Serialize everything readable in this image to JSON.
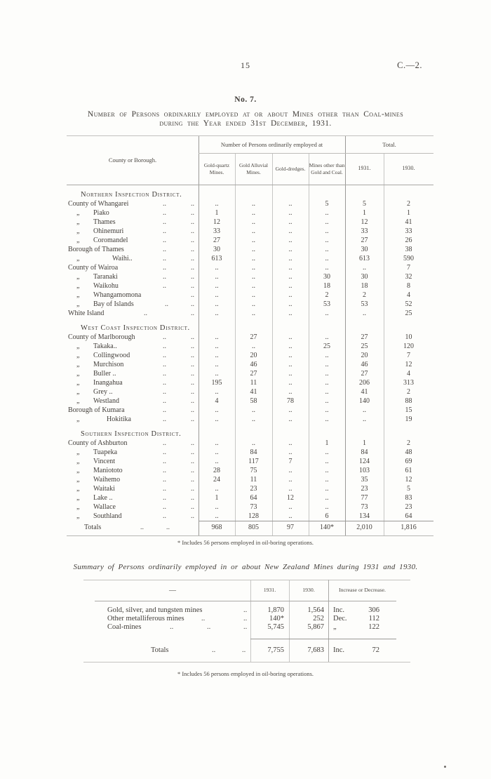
{
  "page": {
    "page_number": "15",
    "doc_ref": "C.—2.",
    "table_number": "No. 7.",
    "title_line1": "Number of Persons ordinarily employed at or about Mines other than Coal-mines",
    "title_line2": "during the Year ended 31st December, 1931.",
    "footnote": "* Includes 56 persons employed in oil-boring operations."
  },
  "glyphs": {
    "ditto": "„",
    "leader": ".."
  },
  "main_table": {
    "stub_header": "County or Borough.",
    "col_group_header": "Number of Persons ordinarily employed at",
    "total_header": "Total.",
    "columns": [
      "Gold-quartz Mines.",
      "Gold Alluvial Mines.",
      "Gold-dredges.",
      "Mines other than Gold and Coal.",
      "1931.",
      "1930."
    ],
    "rows": [
      {
        "type": "section",
        "label": "Northern Inspection District."
      },
      {
        "type": "data",
        "ditto": false,
        "x": 2,
        "label": "County of Whangarei",
        "leaders": [
          137,
          177
        ],
        "cells": [
          "..",
          "..",
          "..",
          "5",
          "5",
          "2"
        ]
      },
      {
        "type": "data",
        "ditto": true,
        "x": 38,
        "label": "Piako",
        "leaders": [
          137,
          177
        ],
        "cells": [
          "1",
          "..",
          "..",
          "..",
          "1",
          "1"
        ]
      },
      {
        "type": "data",
        "ditto": true,
        "x": 38,
        "label": "Thames",
        "leaders": [
          137,
          177
        ],
        "cells": [
          "12",
          "..",
          "..",
          "..",
          "12",
          "41"
        ]
      },
      {
        "type": "data",
        "ditto": true,
        "x": 38,
        "label": "Ohinemuri",
        "leaders": [
          137,
          177
        ],
        "cells": [
          "33",
          "..",
          "..",
          "..",
          "33",
          "33"
        ]
      },
      {
        "type": "data",
        "ditto": true,
        "x": 38,
        "label": "Coromandel",
        "leaders": [
          137,
          177
        ],
        "cells": [
          "27",
          "..",
          "..",
          "..",
          "27",
          "26"
        ]
      },
      {
        "type": "data",
        "ditto": false,
        "x": 2,
        "label": "Borough of Thames",
        "leaders": [
          137,
          177
        ],
        "cells": [
          "30",
          "..",
          "..",
          "..",
          "30",
          "38"
        ]
      },
      {
        "type": "data",
        "ditto": true,
        "x": 65,
        "label": "Waihi..",
        "leaders": [
          137,
          177
        ],
        "cells": [
          "613",
          "..",
          "..",
          "..",
          "613",
          "590"
        ]
      },
      {
        "type": "data",
        "ditto": false,
        "x": 2,
        "label": "County of Wairoa",
        "leaders": [
          137,
          177
        ],
        "cells": [
          "..",
          "..",
          "..",
          "..",
          "..",
          "7"
        ]
      },
      {
        "type": "data",
        "ditto": true,
        "x": 38,
        "label": "Taranaki",
        "leaders": [
          137,
          177
        ],
        "cells": [
          "..",
          "..",
          "..",
          "30",
          "30",
          "32"
        ]
      },
      {
        "type": "data",
        "ditto": true,
        "x": 38,
        "label": "Waikohu",
        "leaders": [
          137,
          177
        ],
        "cells": [
          "..",
          "..",
          "..",
          "18",
          "18",
          "8"
        ]
      },
      {
        "type": "data",
        "ditto": true,
        "x": 38,
        "label": "Whangamomona",
        "leaders": [
          177
        ],
        "cells": [
          "..",
          "..",
          "..",
          "2",
          "2",
          "4"
        ]
      },
      {
        "type": "data",
        "ditto": true,
        "x": 38,
        "label": "Bay of Islands",
        "leaders": [
          140,
          177
        ],
        "cells": [
          "..",
          "..",
          "..",
          "53",
          "53",
          "52"
        ]
      },
      {
        "type": "data",
        "ditto": false,
        "x": 2,
        "label": "White Island",
        "leaders": [
          110,
          177
        ],
        "cells": [
          "..",
          "..",
          "..",
          "..",
          "..",
          "25"
        ]
      },
      {
        "type": "section",
        "gap": true,
        "label": "West Coast Inspection District."
      },
      {
        "type": "data",
        "ditto": false,
        "x": 2,
        "label": "County of Marlborough",
        "leaders": [
          137,
          177
        ],
        "cells": [
          "..",
          "27",
          "..",
          "..",
          "27",
          "10"
        ]
      },
      {
        "type": "data",
        "ditto": true,
        "x": 38,
        "label": "Takaka..",
        "leaders": [
          137,
          177
        ],
        "cells": [
          "..",
          "..",
          "..",
          "25",
          "25",
          "120"
        ]
      },
      {
        "type": "data",
        "ditto": true,
        "x": 38,
        "label": "Collingwood",
        "leaders": [
          137,
          177
        ],
        "cells": [
          "..",
          "20",
          "..",
          "..",
          "20",
          "7"
        ]
      },
      {
        "type": "data",
        "ditto": true,
        "x": 38,
        "label": "Murchison",
        "leaders": [
          137,
          177
        ],
        "cells": [
          "..",
          "46",
          "..",
          "..",
          "46",
          "12"
        ]
      },
      {
        "type": "data",
        "ditto": true,
        "x": 38,
        "label": "Buller ..",
        "leaders": [
          137,
          177
        ],
        "cells": [
          "..",
          "27",
          "..",
          "..",
          "27",
          "4"
        ]
      },
      {
        "type": "data",
        "ditto": true,
        "x": 38,
        "label": "Inangahua",
        "leaders": [
          137,
          177
        ],
        "cells": [
          "195",
          "11",
          "..",
          "..",
          "206",
          "313"
        ]
      },
      {
        "type": "data",
        "ditto": true,
        "x": 38,
        "label": "Grey  ..",
        "leaders": [
          137,
          177
        ],
        "cells": [
          "..",
          "41",
          "..",
          "..",
          "41",
          "2"
        ]
      },
      {
        "type": "data",
        "ditto": true,
        "x": 38,
        "label": "Westland",
        "leaders": [
          137,
          177
        ],
        "cells": [
          "4",
          "58",
          "78",
          "..",
          "140",
          "88"
        ]
      },
      {
        "type": "data",
        "ditto": false,
        "x": 2,
        "label": "Borough of Kumara",
        "leaders": [
          137,
          177
        ],
        "cells": [
          "..",
          "..",
          "..",
          "..",
          "..",
          "15"
        ]
      },
      {
        "type": "data",
        "ditto": true,
        "x": 57,
        "label": "Hokitika",
        "leaders": [
          137,
          177
        ],
        "cells": [
          "..",
          "..",
          "..",
          "..",
          "..",
          "19"
        ]
      },
      {
        "type": "section",
        "gap": true,
        "label": "Southern Inspection District."
      },
      {
        "type": "data",
        "ditto": false,
        "x": 2,
        "label": "County of Ashburton",
        "leaders": [
          137,
          177
        ],
        "cells": [
          "..",
          "..",
          "..",
          "1",
          "1",
          "2"
        ]
      },
      {
        "type": "data",
        "ditto": true,
        "x": 38,
        "label": "Tuapeka",
        "leaders": [
          137,
          177
        ],
        "cells": [
          "..",
          "84",
          "..",
          "..",
          "84",
          "48"
        ]
      },
      {
        "type": "data",
        "ditto": true,
        "x": 38,
        "label": "Vincent",
        "leaders": [
          137,
          177
        ],
        "cells": [
          "..",
          "117",
          "7",
          "..",
          "124",
          "69"
        ]
      },
      {
        "type": "data",
        "ditto": true,
        "x": 38,
        "label": "Maniototo",
        "leaders": [
          137,
          177
        ],
        "cells": [
          "28",
          "75",
          "..",
          "..",
          "103",
          "61"
        ]
      },
      {
        "type": "data",
        "ditto": true,
        "x": 38,
        "label": "Waihemo",
        "leaders": [
          137,
          177
        ],
        "cells": [
          "24",
          "11",
          "..",
          "..",
          "35",
          "12"
        ]
      },
      {
        "type": "data",
        "ditto": true,
        "x": 38,
        "label": "Waitaki",
        "leaders": [
          137,
          177
        ],
        "cells": [
          "..",
          "23",
          "..",
          "..",
          "23",
          "5"
        ]
      },
      {
        "type": "data",
        "ditto": true,
        "x": 38,
        "label": "Lake  ..",
        "leaders": [
          137,
          177
        ],
        "cells": [
          "1",
          "64",
          "12",
          "..",
          "77",
          "83"
        ]
      },
      {
        "type": "data",
        "ditto": true,
        "x": 38,
        "label": "Wallace",
        "leaders": [
          137,
          177
        ],
        "cells": [
          "..",
          "73",
          "..",
          "..",
          "73",
          "23"
        ]
      },
      {
        "type": "data",
        "ditto": true,
        "x": 38,
        "label": "Southland",
        "leaders": [
          137,
          177
        ],
        "cells": [
          "..",
          "128",
          "..",
          "6",
          "134",
          "64"
        ]
      },
      {
        "type": "totals",
        "ditto": false,
        "x": 25,
        "label": "Totals",
        "leaders": [
          105,
          142
        ],
        "cells": [
          "968",
          "805",
          "97",
          "140*",
          "2,010",
          "1,816"
        ]
      }
    ]
  },
  "summary": {
    "title": "Summary of Persons ordinarily employed in or about New Zealand Mines during 1931 and 1930.",
    "columns": [
      "—",
      "1931.",
      "1930.",
      "Increase or Decrease."
    ],
    "rows": [
      {
        "type": "data",
        "x": 18,
        "label": "Gold, silver, and tungsten mines",
        "leaders": [
          212
        ],
        "v1931": "1,870",
        "v1930": "1,564",
        "change_label": "Inc.",
        "change": "306"
      },
      {
        "type": "data",
        "x": 18,
        "label": "Other metalliferous mines",
        "leaders": [
          152,
          212
        ],
        "v1931": "140*",
        "v1930": "252",
        "change_label": "Dec.",
        "change": "112"
      },
      {
        "type": "data",
        "x": 18,
        "label": "Coal-mines",
        "leaders": [
          107,
          160,
          212
        ],
        "v1931": "5,745",
        "v1930": "5,867",
        "change_label": "„",
        "change": "122"
      },
      {
        "type": "totals",
        "x": 80,
        "label": "Totals",
        "leaders": [
          167,
          210
        ],
        "v1931": "7,755",
        "v1930": "7,683",
        "change_label": "Inc.",
        "change": "72"
      }
    ],
    "footnote": "* Includes 56 persons employed in oil-boring operations."
  }
}
